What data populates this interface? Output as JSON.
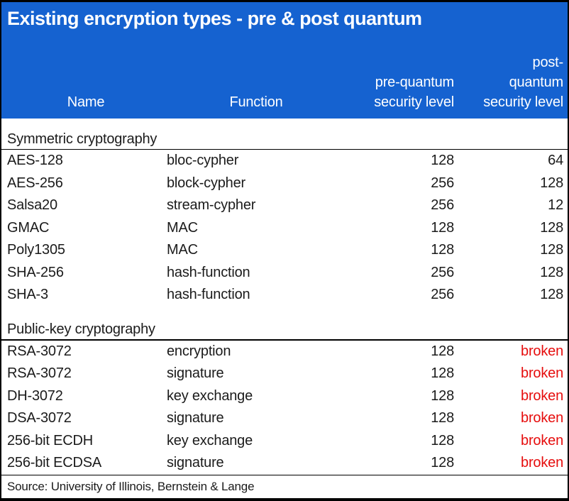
{
  "colors": {
    "header_bg": "#1562d0",
    "header_text": "#ffffff",
    "body_text": "#1b1b1b",
    "broken_text": "#e60d0d",
    "border": "#000000"
  },
  "chart_data": {
    "type": "table",
    "title": "Existing encryption types - pre & post quantum",
    "columns": [
      {
        "label": "Name",
        "align": "center"
      },
      {
        "label": "Function",
        "align": "center"
      },
      {
        "label": "pre-quantum security level",
        "align": "right",
        "lines": [
          "pre-quantum",
          "security level"
        ]
      },
      {
        "label": "post-quantum security level",
        "align": "right",
        "lines": [
          "post-",
          "quantum",
          "security level"
        ]
      }
    ],
    "sections": [
      {
        "label": "Symmetric cryptography",
        "rows": [
          {
            "name": "AES-128",
            "function": "bloc-cypher",
            "pre_quantum": "128",
            "post_quantum": "64",
            "broken": false
          },
          {
            "name": "AES-256",
            "function": "block-cypher",
            "pre_quantum": "256",
            "post_quantum": "128",
            "broken": false
          },
          {
            "name": "Salsa20",
            "function": "stream-cypher",
            "pre_quantum": "256",
            "post_quantum": "12",
            "broken": false
          },
          {
            "name": "GMAC",
            "function": "MAC",
            "pre_quantum": "128",
            "post_quantum": "128",
            "broken": false
          },
          {
            "name": "Poly1305",
            "function": "MAC",
            "pre_quantum": "128",
            "post_quantum": "128",
            "broken": false
          },
          {
            "name": "SHA-256",
            "function": "hash-function",
            "pre_quantum": "256",
            "post_quantum": "128",
            "broken": false
          },
          {
            "name": "SHA-3",
            "function": "hash-function",
            "pre_quantum": "256",
            "post_quantum": "128",
            "broken": false
          }
        ]
      },
      {
        "label": "Public-key cryptography",
        "rows": [
          {
            "name": "RSA-3072",
            "function": "encryption",
            "pre_quantum": "128",
            "post_quantum": "broken",
            "broken": true
          },
          {
            "name": "RSA-3072",
            "function": "signature",
            "pre_quantum": "128",
            "post_quantum": "broken",
            "broken": true
          },
          {
            "name": "DH-3072",
            "function": "key exchange",
            "pre_quantum": "128",
            "post_quantum": "broken",
            "broken": true
          },
          {
            "name": "DSA-3072",
            "function": "signature",
            "pre_quantum": "128",
            "post_quantum": "broken",
            "broken": true
          },
          {
            "name": "256-bit ECDH",
            "function": "key exchange",
            "pre_quantum": "128",
            "post_quantum": "broken",
            "broken": true
          },
          {
            "name": "256-bit ECDSA",
            "function": "signature",
            "pre_quantum": "128",
            "post_quantum": "broken",
            "broken": true
          }
        ]
      }
    ],
    "source": "Source: University of Illinois, Bernstein & Lange"
  }
}
